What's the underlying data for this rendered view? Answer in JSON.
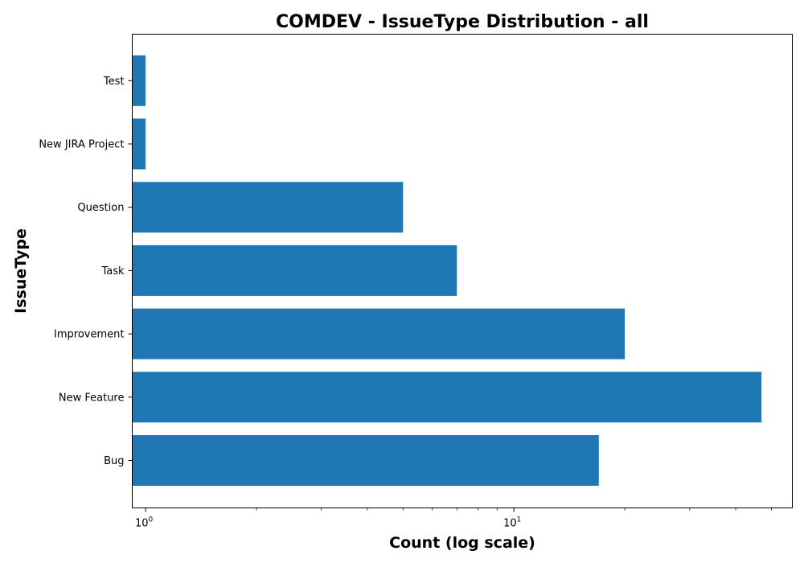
{
  "chart_data": {
    "type": "bar",
    "orientation": "horizontal",
    "title": "COMDEV - IssueType Distribution - all",
    "xlabel": "Count (log scale)",
    "ylabel": "IssueType",
    "xscale": "log",
    "xlim": [
      0.92,
      57
    ],
    "categories": [
      "Test",
      "New JIRA Project",
      "Question",
      "Task",
      "Improvement",
      "New Feature",
      "Bug"
    ],
    "values": [
      1,
      1,
      5,
      7,
      20,
      47,
      17
    ],
    "xticks": [
      {
        "value": 1,
        "base": "10",
        "exponent": "0"
      },
      {
        "value": 10,
        "base": "10",
        "exponent": "1"
      }
    ],
    "bar_color": "#1f77b4",
    "grid": false,
    "legend": false
  }
}
